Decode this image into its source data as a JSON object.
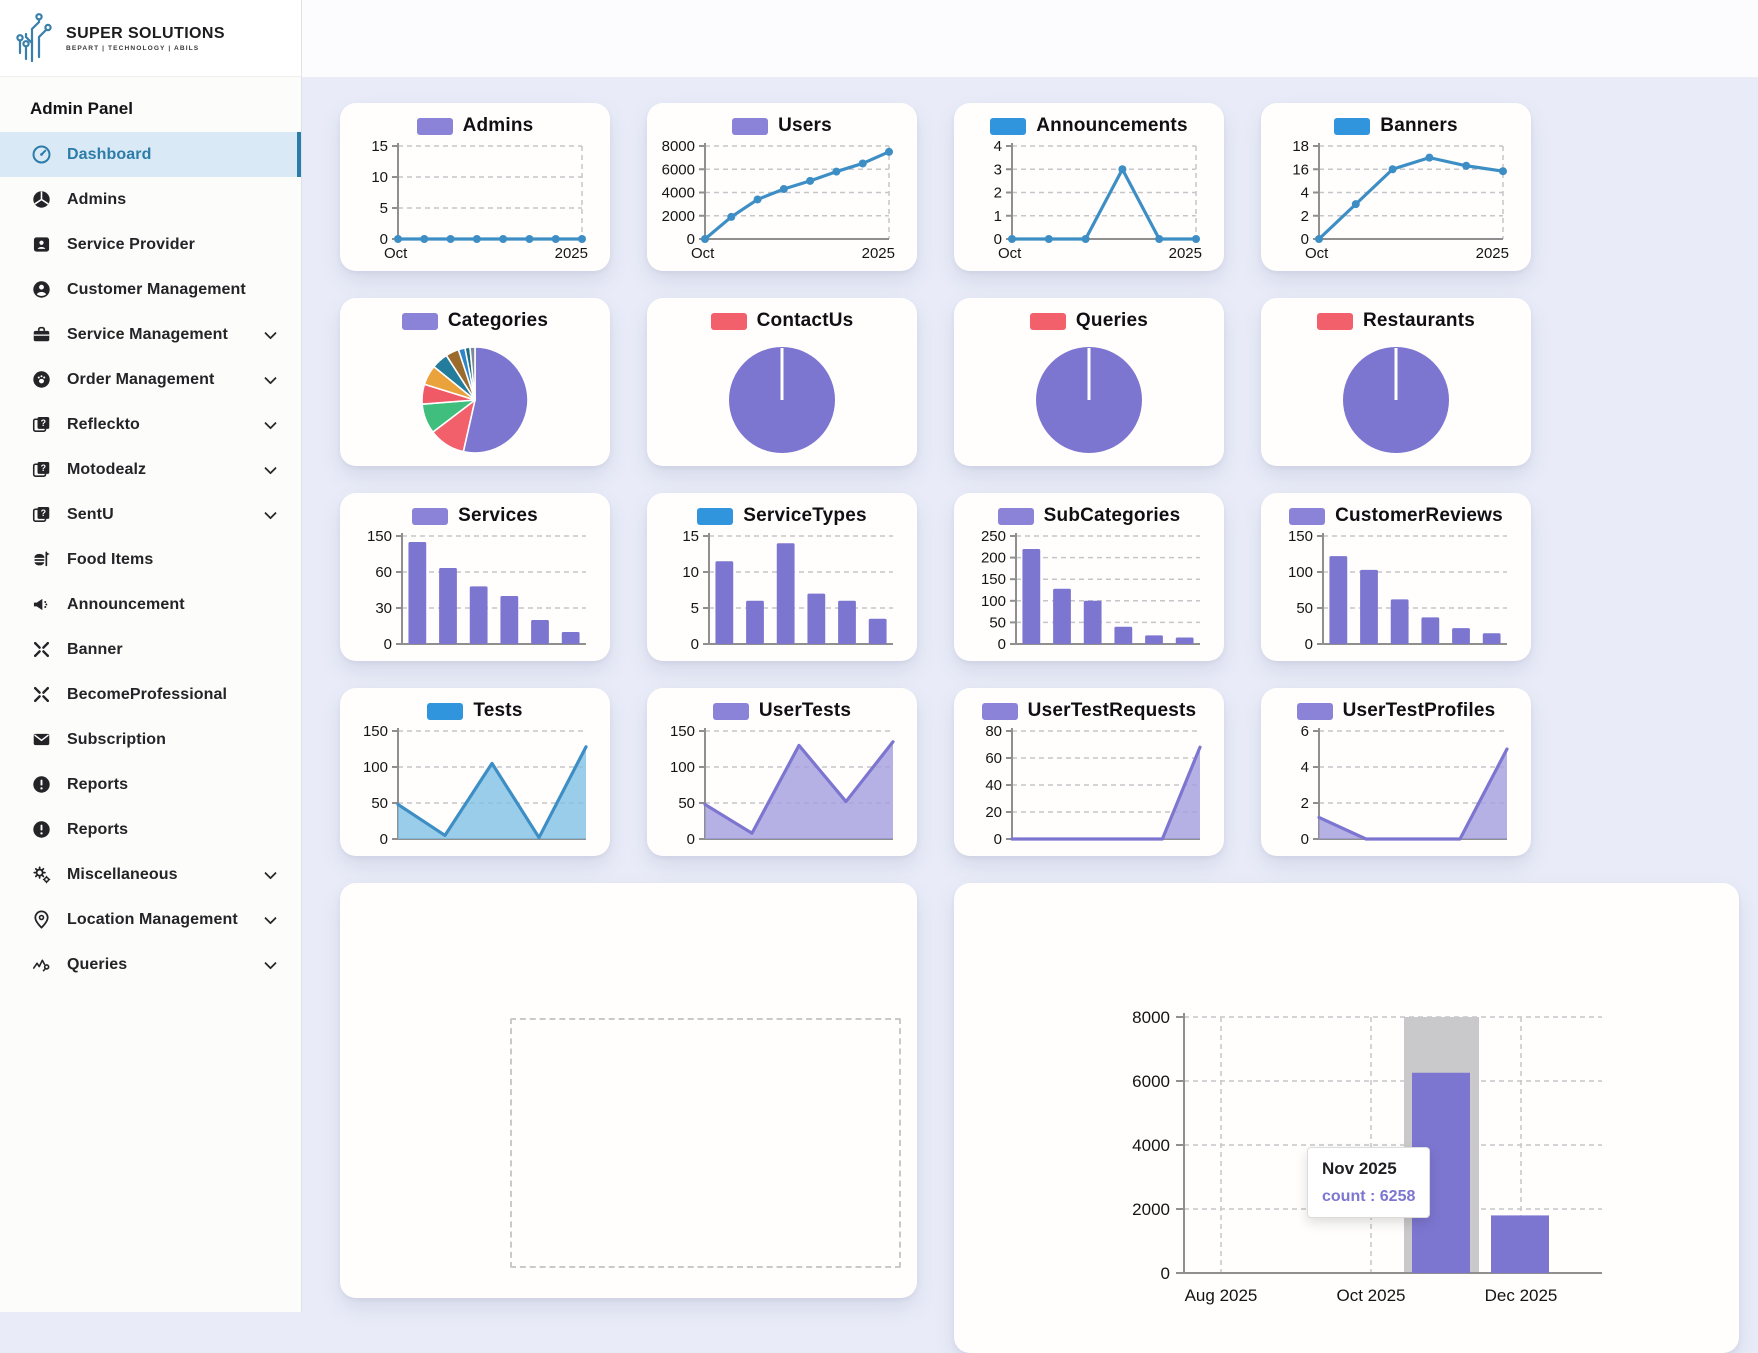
{
  "sidebar": {
    "logo": {
      "title": "SUPER SOLUTIONS",
      "tagline": "BEPART | TECHNOLOGY | ABILS"
    },
    "section_label": "Admin Panel",
    "items": [
      {
        "label": "Dashboard",
        "icon": "gauge",
        "active": true,
        "chevron": false
      },
      {
        "label": "Admins",
        "icon": "pie-chart",
        "active": false,
        "chevron": false
      },
      {
        "label": "Service Provider",
        "icon": "id-card",
        "active": false,
        "chevron": false
      },
      {
        "label": "Customer Management",
        "icon": "user-circle",
        "active": false,
        "chevron": false
      },
      {
        "label": "Service Management",
        "icon": "briefcase",
        "active": false,
        "chevron": true
      },
      {
        "label": "Order Management",
        "icon": "paw",
        "active": false,
        "chevron": true
      },
      {
        "label": "Refleckto",
        "icon": "layers-question",
        "active": false,
        "chevron": true
      },
      {
        "label": "Motodealz",
        "icon": "layers-question",
        "active": false,
        "chevron": true
      },
      {
        "label": "SentU",
        "icon": "layers-question",
        "active": false,
        "chevron": true
      },
      {
        "label": "Food Items",
        "icon": "food-tray",
        "active": false,
        "chevron": false
      },
      {
        "label": "Announcement",
        "icon": "megaphone",
        "active": false,
        "chevron": false
      },
      {
        "label": "Banner",
        "icon": "burst",
        "active": false,
        "chevron": false
      },
      {
        "label": "BecomeProfessional",
        "icon": "burst",
        "active": false,
        "chevron": false
      },
      {
        "label": "Subscription",
        "icon": "envelope",
        "active": false,
        "chevron": false
      },
      {
        "label": "Reports",
        "icon": "alert-circle",
        "active": false,
        "chevron": false
      },
      {
        "label": "Reports",
        "icon": "alert-circle",
        "active": false,
        "chevron": false
      },
      {
        "label": "Miscellaneous",
        "icon": "gears",
        "active": false,
        "chevron": true
      },
      {
        "label": "Location Management",
        "icon": "location-pin",
        "active": false,
        "chevron": true
      },
      {
        "label": "Queries",
        "icon": "scribble",
        "active": false,
        "chevron": true
      }
    ]
  },
  "colors": {
    "background": "#e9ecf8",
    "sidebar_active_bg": "#d9eaf6",
    "accent_blue": "#2c7ca9",
    "line_blue": "#3e8ec6",
    "purple": "#7d76d1",
    "legend_purple": "#8a83d7",
    "legend_blue": "#3095dd",
    "legend_red": "#f2606b",
    "highlight_band": "#c9c9cb"
  },
  "chart_data": [
    {
      "id": "admins",
      "type": "line",
      "title": "Admins",
      "legend_color": "#8a83d7",
      "line_color": "#3e8ec6",
      "yticks": [
        0,
        5,
        10,
        15
      ],
      "x_labels": [
        "Oct",
        "2025"
      ],
      "values": [
        0,
        0,
        0,
        0,
        0,
        0,
        0,
        0
      ]
    },
    {
      "id": "users",
      "type": "line",
      "title": "Users",
      "legend_color": "#8a83d7",
      "line_color": "#3e8ec6",
      "yticks": [
        0,
        2000,
        4000,
        6000,
        8000
      ],
      "x_labels": [
        "Oct",
        "2025"
      ],
      "values": [
        0,
        1900,
        3400,
        4300,
        5000,
        5800,
        6500,
        7500
      ]
    },
    {
      "id": "announcements",
      "type": "line",
      "title": "Announcements",
      "legend_color": "#3095dd",
      "line_color": "#3e8ec6",
      "yticks": [
        0,
        1,
        2,
        3,
        4
      ],
      "x_labels": [
        "Oct",
        "2025"
      ],
      "values": [
        0,
        0,
        0,
        3,
        0,
        0
      ]
    },
    {
      "id": "banners",
      "type": "line",
      "title": "Banners",
      "legend_color": "#3095dd",
      "line_color": "#3e8ec6",
      "yticks": [
        0,
        2,
        4,
        16,
        18
      ],
      "x_labels": [
        "Oct",
        "2025"
      ],
      "values": [
        0,
        3,
        16,
        17,
        16.3,
        15
      ]
    },
    {
      "id": "categories",
      "type": "pie",
      "title": "Categories",
      "legend_color": "#8a83d7",
      "slices": [
        {
          "value": 53,
          "color": "#7d76d1"
        },
        {
          "value": 11,
          "color": "#f2606b"
        },
        {
          "value": 9,
          "color": "#3fbe7e"
        },
        {
          "value": 6,
          "color": "#ef5a66"
        },
        {
          "value": 6,
          "color": "#e9a23c"
        },
        {
          "value": 5,
          "color": "#237c9c"
        },
        {
          "value": 4,
          "color": "#9b6a2d"
        },
        {
          "value": 2,
          "color": "#2e86c8"
        },
        {
          "value": 1.5,
          "color": "#1d6b7d"
        },
        {
          "value": 1.5,
          "color": "#7c8a9a"
        }
      ]
    },
    {
      "id": "contactus",
      "type": "pie",
      "title": "ContactUs",
      "legend_color": "#f2606b",
      "slices": [
        {
          "value": 100,
          "color": "#7d76d1"
        }
      ]
    },
    {
      "id": "queries",
      "type": "pie",
      "title": "Queries",
      "legend_color": "#f2606b",
      "slices": [
        {
          "value": 100,
          "color": "#7d76d1"
        }
      ]
    },
    {
      "id": "restaurants",
      "type": "pie",
      "title": "Restaurants",
      "legend_color": "#f2606b",
      "slices": [
        {
          "value": 100,
          "color": "#7d76d1"
        }
      ]
    },
    {
      "id": "services",
      "type": "bar",
      "title": "Services",
      "legend_color": "#8a83d7",
      "bar_color": "#7d76d1",
      "yticks": [
        0,
        30,
        60,
        150
      ],
      "values": [
        135,
        70,
        48,
        40,
        20,
        10
      ]
    },
    {
      "id": "servicetypes",
      "type": "bar",
      "title": "ServiceTypes",
      "legend_color": "#3095dd",
      "bar_color": "#7d76d1",
      "yticks": [
        0,
        5,
        10,
        15
      ],
      "values": [
        11.5,
        6,
        14,
        7,
        6,
        3.5
      ]
    },
    {
      "id": "subcategories",
      "type": "bar",
      "title": "SubCategories",
      "legend_color": "#8a83d7",
      "bar_color": "#7d76d1",
      "yticks": [
        0,
        50,
        100,
        150,
        200,
        250
      ],
      "values": [
        220,
        128,
        100,
        40,
        20,
        15
      ]
    },
    {
      "id": "customerreviews",
      "type": "bar",
      "title": "CustomerReviews",
      "legend_color": "#8a83d7",
      "bar_color": "#7d76d1",
      "yticks": [
        0,
        50,
        100,
        150
      ],
      "values": [
        122,
        103,
        62,
        37,
        22,
        15
      ]
    },
    {
      "id": "tests",
      "type": "area",
      "title": "Tests",
      "legend_color": "#3095dd",
      "line_color": "#3e8ec6",
      "fill_color": "#7fc0e4",
      "yticks": [
        0,
        50,
        100,
        150
      ],
      "values": [
        48,
        5,
        105,
        2,
        128
      ]
    },
    {
      "id": "usertests",
      "type": "area",
      "title": "UserTests",
      "legend_color": "#8a83d7",
      "line_color": "#7d76d1",
      "fill_color": "#a49ede",
      "yticks": [
        0,
        50,
        100,
        150
      ],
      "values": [
        48,
        8,
        130,
        52,
        135
      ]
    },
    {
      "id": "usertestrequests",
      "type": "area",
      "title": "UserTestRequests",
      "legend_color": "#8a83d7",
      "line_color": "#7d76d1",
      "fill_color": "#a49ede",
      "yticks": [
        0,
        20,
        40,
        60,
        80
      ],
      "values": [
        0,
        0,
        0,
        0,
        0,
        68
      ]
    },
    {
      "id": "usertestprofiles",
      "type": "area",
      "title": "UserTestProfiles",
      "legend_color": "#8a83d7",
      "line_color": "#7d76d1",
      "fill_color": "#a49ede",
      "yticks": [
        0,
        2,
        4,
        6
      ],
      "values": [
        1.2,
        0,
        0,
        0,
        5
      ]
    },
    {
      "id": "monthly-count",
      "type": "bar",
      "title": "",
      "yticks": [
        0,
        2000,
        4000,
        6000,
        8000
      ],
      "x_labels": [
        "Aug 2025",
        "Oct 2025",
        "Dec 2025"
      ],
      "bars": [
        {
          "label": "Nov 2025",
          "value": 6258,
          "highlighted": true
        },
        {
          "label": "Dec 2025",
          "value": 1800,
          "highlighted": false
        }
      ],
      "tooltip": {
        "title": "Nov 2025",
        "text": "count : 6258"
      },
      "bar_color": "#7d76d1",
      "highlight_band_color": "#c9c9cb"
    }
  ]
}
